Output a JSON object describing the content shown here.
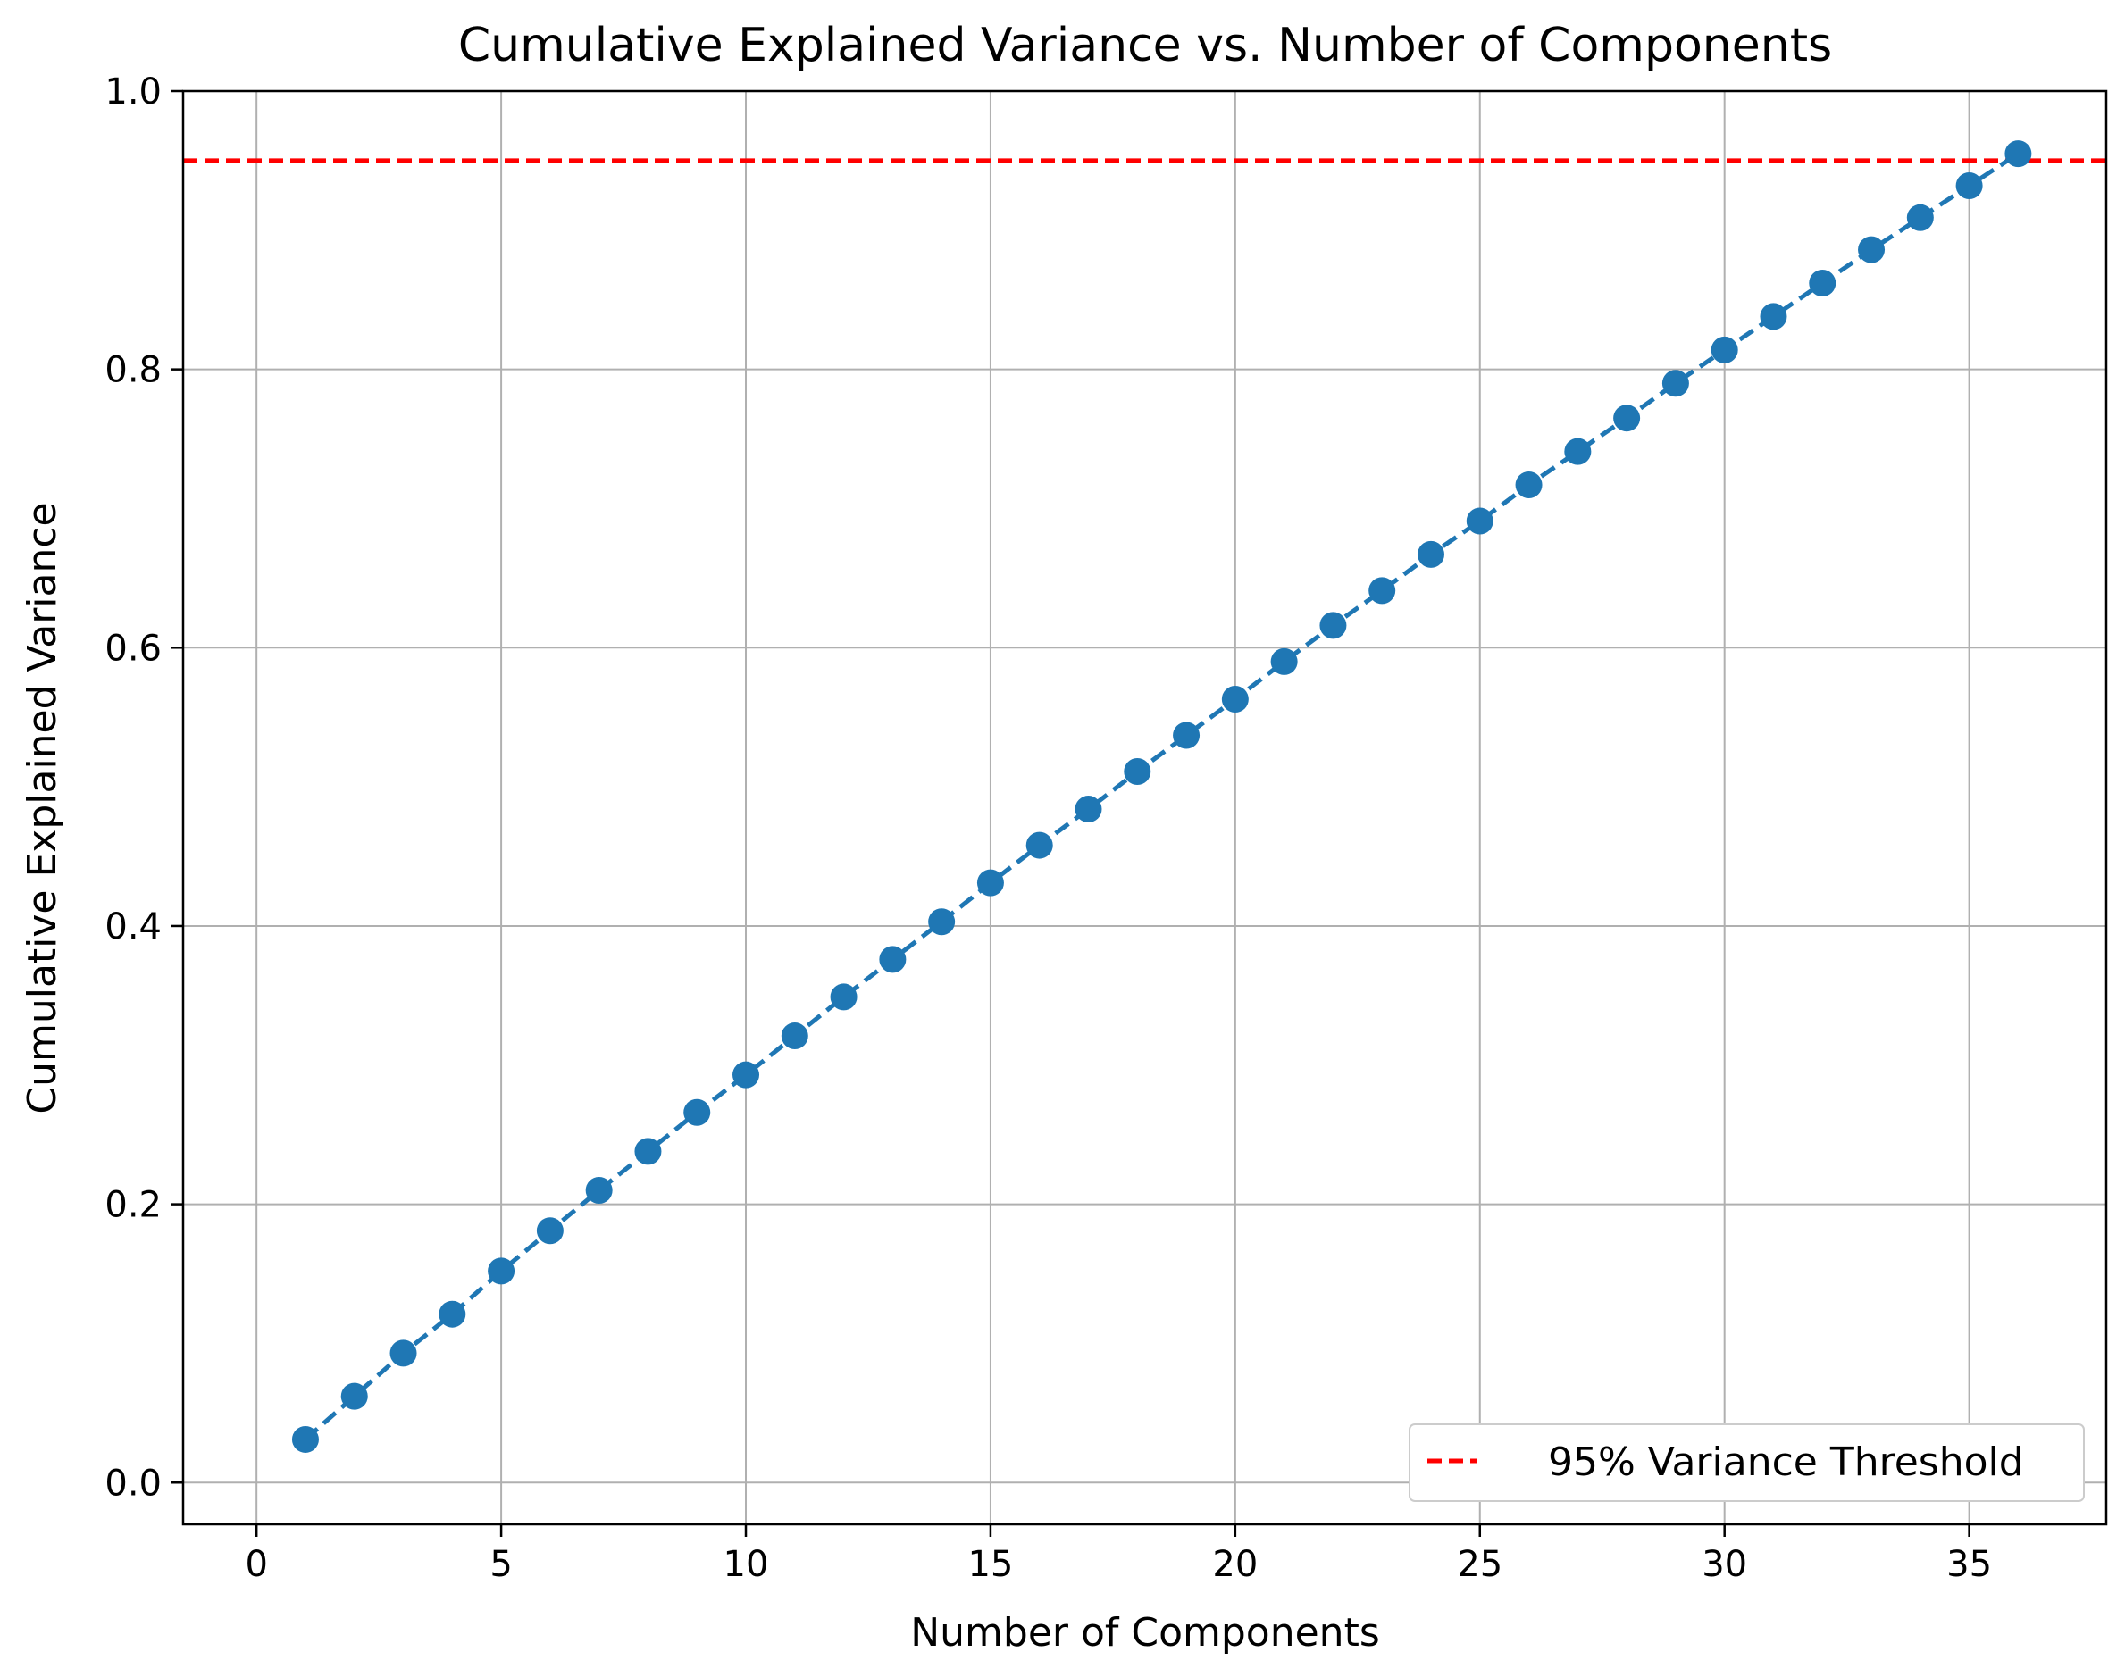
{
  "chart_data": {
    "type": "line",
    "title": "Cumulative Explained Variance vs. Number of Components",
    "xlabel": "Number of Components",
    "ylabel": "Cumulative Explained Variance",
    "xlim": [
      -1.5,
      37.8
    ],
    "ylim": [
      -0.03,
      1.0
    ],
    "xticks": [
      0,
      5,
      10,
      15,
      20,
      25,
      30,
      35
    ],
    "yticks": [
      0.0,
      0.2,
      0.4,
      0.6,
      0.8,
      1.0
    ],
    "xtick_labels": [
      "0",
      "5",
      "10",
      "15",
      "20",
      "25",
      "30",
      "35"
    ],
    "ytick_labels": [
      "0.0",
      "0.2",
      "0.4",
      "0.6",
      "0.8",
      "1.0"
    ],
    "grid": true,
    "series": [
      {
        "name": "Cumulative Explained Variance",
        "style": "dashed line with circle markers",
        "color": "#1f77b4",
        "x": [
          1,
          2,
          3,
          4,
          5,
          6,
          7,
          8,
          9,
          10,
          11,
          12,
          13,
          14,
          15,
          16,
          17,
          18,
          19,
          20,
          21,
          22,
          23,
          24,
          25,
          26,
          27,
          28,
          29,
          30,
          31,
          32,
          33,
          34,
          35,
          36
        ],
        "y": [
          0.031,
          0.062,
          0.093,
          0.121,
          0.152,
          0.181,
          0.21,
          0.238,
          0.266,
          0.293,
          0.321,
          0.349,
          0.376,
          0.403,
          0.431,
          0.458,
          0.484,
          0.511,
          0.537,
          0.563,
          0.59,
          0.616,
          0.641,
          0.667,
          0.691,
          0.717,
          0.741,
          0.765,
          0.79,
          0.814,
          0.838,
          0.862,
          0.886,
          0.909,
          0.932,
          0.955
        ]
      }
    ],
    "threshold": {
      "name": "95% Variance Threshold",
      "y": 0.95,
      "style": "dashed",
      "color": "#ff0000"
    },
    "legend": {
      "position": "bottom-right",
      "entries": [
        "95% Variance Threshold"
      ]
    }
  }
}
